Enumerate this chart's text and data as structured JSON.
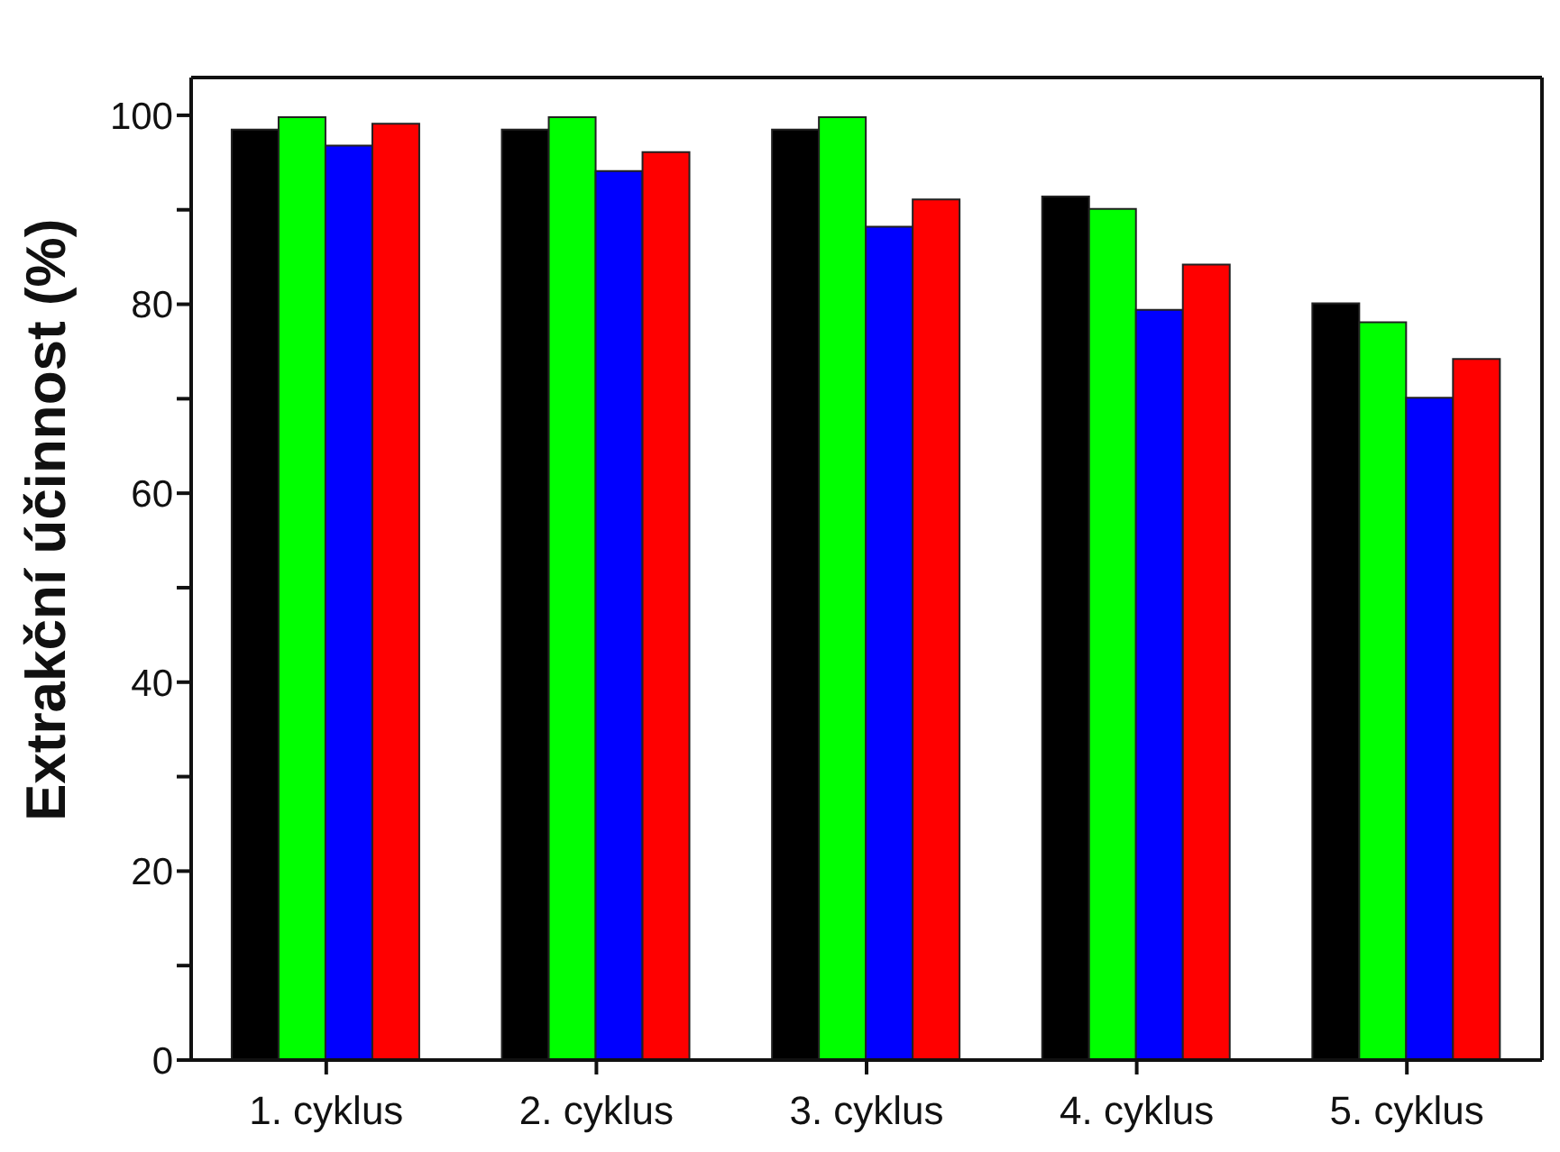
{
  "chart_data": {
    "type": "bar",
    "ylabel": "Extrakční účinnost (%)",
    "categories": [
      "1. cyklus",
      "2. cyklus",
      "3. cyklus",
      "4. cyklus",
      "5. cyklus"
    ],
    "series": [
      {
        "color": "#000000",
        "values": [
          98.5,
          98.5,
          98.5,
          91.4,
          80.1
        ]
      },
      {
        "color": "#00ff00",
        "values": [
          99.8,
          99.8,
          99.8,
          90.1,
          78.1
        ]
      },
      {
        "color": "#0000ff",
        "values": [
          96.8,
          94.1,
          88.2,
          79.4,
          70.1
        ]
      },
      {
        "color": "#ff0000",
        "values": [
          99.1,
          96.1,
          91.1,
          84.2,
          74.2
        ]
      }
    ],
    "ylim": [
      0,
      104
    ],
    "yticks": [
      0,
      {
        "value": 10,
        "label": null
      },
      20,
      {
        "value": 30,
        "label": null
      },
      40,
      {
        "value": 50,
        "label": null
      },
      60,
      {
        "value": 70,
        "label": null
      },
      80,
      {
        "value": 90,
        "label": null
      },
      100
    ],
    "grid": false,
    "legend": false
  }
}
